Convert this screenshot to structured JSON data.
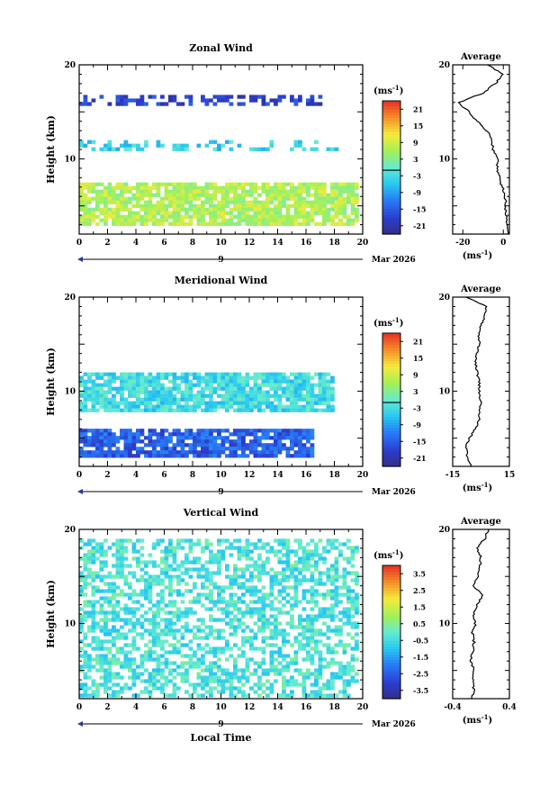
{
  "chart_data": [
    {
      "type": "heatmap",
      "title": "Zonal Wind",
      "ylabel": "Height (km)",
      "x_ticks": [
        "0",
        "2",
        "4",
        "6",
        "8",
        "10",
        "12",
        "14",
        "16",
        "18",
        "20"
      ],
      "y_ticks": [
        "10",
        "20"
      ],
      "xlim": [
        0,
        20
      ],
      "ylim": [
        2,
        20
      ],
      "date_day": "9",
      "date_month": "Mar 2026",
      "colorbar": {
        "unit": "(ms",
        "unit_exp": "-1",
        "ticks": [
          "21",
          "15",
          "9",
          "3",
          "-3",
          "-9",
          "-15",
          "-21"
        ],
        "range": [
          -24,
          24
        ],
        "zero_line": -1
      },
      "layers": [
        {
          "name": "strong westward layer",
          "y_range": [
            16.0,
            16.8
          ],
          "value": -18,
          "x_range": [
            0,
            17
          ]
        },
        {
          "name": "mid-level cyan band",
          "y_range": [
            11.0,
            12.0
          ],
          "value": -4,
          "x_range": [
            0,
            18.5
          ]
        },
        {
          "name": "lower-level easterly band",
          "y_range": [
            3.0,
            7.5
          ],
          "value": 7,
          "x_range": [
            0,
            19.5
          ]
        }
      ],
      "profile": {
        "title": "Average",
        "xlim": [
          -25,
          3
        ],
        "x_ticks": [
          "-20",
          "0"
        ],
        "y_ticks": [
          "10",
          "20"
        ],
        "unit": "(ms",
        "unit_exp": "-1",
        "heights": [
          2,
          3,
          4,
          5,
          6,
          7,
          8,
          9,
          10,
          11,
          12,
          13,
          14,
          15,
          16,
          17,
          18,
          19,
          20
        ],
        "values": [
          2,
          2,
          1.5,
          1,
          1,
          -0.5,
          -2,
          -3,
          -3,
          -5,
          -6,
          -8,
          -13,
          -17,
          -22,
          -10,
          -4,
          0,
          -8
        ]
      }
    },
    {
      "type": "heatmap",
      "title": "Meridional Wind",
      "ylabel": "Height (km)",
      "x_ticks": [
        "0",
        "2",
        "4",
        "6",
        "8",
        "10",
        "12",
        "14",
        "16",
        "18",
        "20"
      ],
      "y_ticks": [
        "10",
        "20"
      ],
      "xlim": [
        0,
        20
      ],
      "ylim": [
        2,
        20
      ],
      "date_day": "9",
      "date_month": "Mar 2026",
      "colorbar": {
        "unit": "(ms",
        "unit_exp": "-1",
        "ticks": [
          "21",
          "15",
          "9",
          "3",
          "-3",
          "-9",
          "-15",
          "-21"
        ],
        "range": [
          -24,
          24
        ],
        "zero_line": -1
      },
      "layers": [
        {
          "name": "strong southward band",
          "y_range": [
            3.0,
            6.0
          ],
          "value": -15,
          "x_range": [
            0,
            16.5
          ]
        },
        {
          "name": "sparse mid-level echoes",
          "y_range": [
            8.0,
            12.0
          ],
          "value": -3,
          "x_range": [
            0,
            18
          ]
        }
      ],
      "profile": {
        "title": "Average",
        "xlim": [
          -15,
          15
        ],
        "x_ticks": [
          "-15",
          "15"
        ],
        "y_ticks": [
          "10",
          "20"
        ],
        "unit": "(ms",
        "unit_exp": "-1",
        "heights": [
          2,
          3,
          4,
          5,
          6,
          7,
          8,
          9,
          10,
          11,
          12,
          13,
          14,
          15,
          16,
          17,
          18,
          19,
          20
        ],
        "values": [
          -5,
          -7,
          -8,
          -6,
          -3,
          -1,
          -1,
          0,
          -1,
          -1,
          -2,
          -3,
          -2,
          -1,
          -1,
          0,
          2,
          3,
          -8
        ]
      }
    },
    {
      "type": "heatmap",
      "title": "Vertical Wind",
      "ylabel": "Height (km)",
      "xlabel": "Local Time",
      "x_ticks": [
        "0",
        "2",
        "4",
        "6",
        "8",
        "10",
        "12",
        "14",
        "16",
        "18",
        "20"
      ],
      "y_ticks": [
        "10",
        "20"
      ],
      "xlim": [
        0,
        20
      ],
      "ylim": [
        2,
        20
      ],
      "date_day": "9",
      "date_month": "Mar 2026",
      "colorbar": {
        "unit": "(ms",
        "unit_exp": "-1",
        "ticks": [
          "3.5",
          "2.5",
          "1.5",
          "0.5",
          "-0.5",
          "-1.5",
          "-2.5",
          "-3.5"
        ],
        "range": [
          -4,
          4
        ]
      },
      "layers": [
        {
          "name": "near-zero vertical motion",
          "y_range": [
            2.5,
            19.0
          ],
          "value": -0.3,
          "x_range": [
            0,
            19.5
          ]
        }
      ],
      "profile": {
        "title": "Average",
        "xlim": [
          -0.4,
          0.4
        ],
        "x_ticks": [
          "-0.4",
          "0.4"
        ],
        "y_ticks": [
          "10",
          "20"
        ],
        "unit": "(ms",
        "unit_exp": "-1",
        "heights": [
          2,
          3,
          4,
          5,
          6,
          7,
          8,
          9,
          10,
          11,
          12,
          13,
          14,
          15,
          16,
          17,
          18,
          19,
          20
        ],
        "values": [
          -0.12,
          -0.1,
          -0.12,
          -0.1,
          -0.14,
          -0.12,
          -0.1,
          -0.12,
          -0.08,
          -0.1,
          -0.05,
          0.02,
          -0.1,
          -0.05,
          -0.02,
          0.0,
          -0.05,
          0.05,
          0.1
        ]
      }
    }
  ]
}
